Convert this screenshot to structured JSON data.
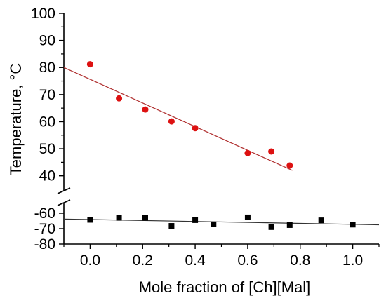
{
  "chart_data": {
    "type": "scatter",
    "title": "",
    "xlabel": "Mole fraction of [Ch][Mal]",
    "ylabel": "Temperature, °C",
    "xlim": [
      -0.1,
      1.1
    ],
    "x_ticks": [
      "0.0",
      "0.2",
      "0.4",
      "0.6",
      "0.8",
      "1.0"
    ],
    "x_tick_values": [
      0.0,
      0.2,
      0.4,
      0.6,
      0.8,
      1.0
    ],
    "broken_y_axis": true,
    "upper_ylim": [
      35,
      100
    ],
    "upper_y_ticks": [
      "40",
      "50",
      "60",
      "70",
      "80",
      "90",
      "100"
    ],
    "upper_y_tick_values": [
      40,
      50,
      60,
      70,
      80,
      90,
      100
    ],
    "lower_ylim": [
      -80,
      -55
    ],
    "lower_y_ticks": [
      "-60",
      "-70",
      "-80"
    ],
    "lower_y_tick_values": [
      -60,
      -70,
      -80
    ],
    "grid": false,
    "series": [
      {
        "marker": "circle",
        "color": "#dd1111",
        "panel": "upper",
        "x": [
          0.0,
          0.11,
          0.21,
          0.31,
          0.4,
          0.6,
          0.69,
          0.76
        ],
        "y": [
          81.2,
          68.6,
          64.5,
          60.1,
          57.6,
          48.4,
          49.0,
          43.8
        ],
        "fit": {
          "color": "#b03030",
          "x": [
            -0.1,
            0.77
          ],
          "y": [
            80,
            42
          ]
        }
      },
      {
        "marker": "square",
        "color": "#000000",
        "panel": "lower",
        "x": [
          0.0,
          0.11,
          0.21,
          0.31,
          0.4,
          0.47,
          0.6,
          0.69,
          0.76,
          0.88,
          1.0
        ],
        "y": [
          -64.3,
          -63.0,
          -63.0,
          -68.2,
          -64.5,
          -67.2,
          -62.7,
          -69.0,
          -67.7,
          -64.6,
          -67.4
        ],
        "fit": {
          "color": "#333333",
          "x": [
            -0.1,
            1.1
          ],
          "y": [
            -63.8,
            -67.5
          ]
        }
      }
    ]
  }
}
